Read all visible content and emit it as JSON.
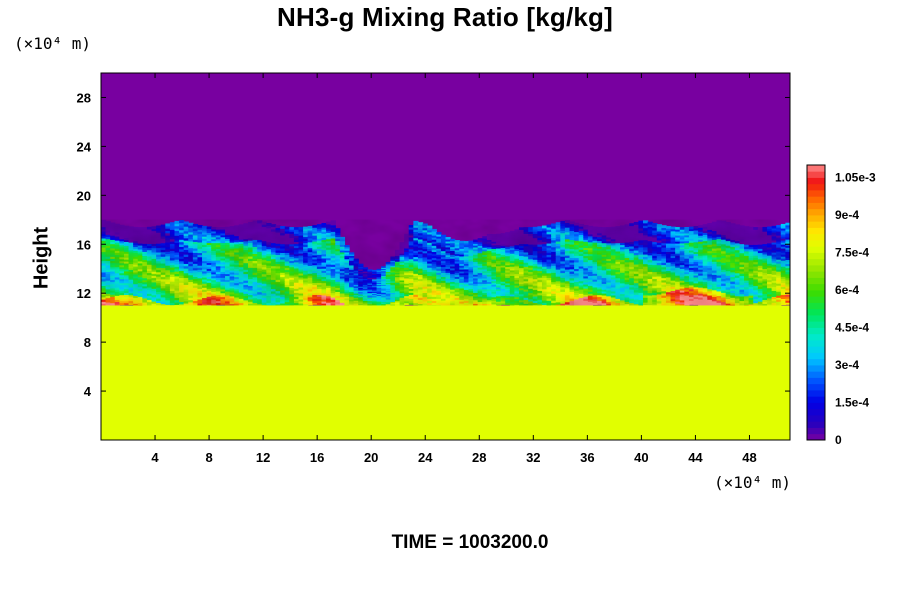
{
  "chart_data": {
    "type": "heatmap",
    "title": "NH3-g Mixing Ratio [kg/kg]",
    "xlabel": "",
    "ylabel": "Height",
    "x_unit_label": "(×10⁴ m)",
    "y_unit_label": "(×10⁴ m)",
    "x_ticks": [
      "4",
      "8",
      "12",
      "16",
      "20",
      "24",
      "28",
      "32",
      "36",
      "40",
      "44",
      "48"
    ],
    "y_ticks": [
      "4",
      "8",
      "12",
      "16",
      "20",
      "24",
      "28"
    ],
    "xlim": [
      0,
      51
    ],
    "ylim": [
      0,
      30
    ],
    "colorbar": {
      "range": [
        0,
        0.0011
      ],
      "tick_labels": [
        "1.05e-3",
        "9e-4",
        "7.5e-4",
        "6e-4",
        "4.5e-4",
        "3e-4",
        "1.5e-4",
        "0"
      ],
      "tick_values": [
        0.00105,
        0.0009,
        0.00075,
        0.0006,
        0.00045,
        0.0003,
        0.00015,
        0
      ]
    },
    "field_summary": {
      "lower_uniform_value": 0.00077,
      "lower_layer_top_height": 11,
      "upper_uniform_value": 0,
      "turbulent_layer_top_height": 18
    },
    "footer_text": "TIME = 1003200.0"
  }
}
